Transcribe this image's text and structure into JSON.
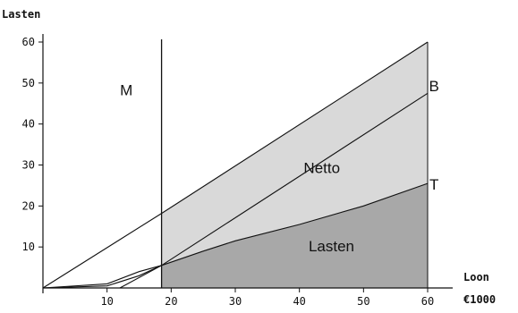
{
  "chart_data": {
    "type": "area",
    "title": "",
    "xlabel": [
      "Loon",
      "€1000"
    ],
    "ylabel": "Lasten",
    "xlim": [
      0,
      60
    ],
    "ylim": [
      0,
      60
    ],
    "xticks": [
      10,
      20,
      30,
      40,
      50,
      60
    ],
    "yticks": [
      10,
      20,
      30,
      40,
      50,
      60
    ],
    "grid": false,
    "vline_x": 18.5,
    "series": [
      {
        "name": "B",
        "x": [
          0,
          18.5,
          60
        ],
        "y": [
          0,
          18.2,
          60
        ]
      },
      {
        "name": "T",
        "x": [
          0,
          10,
          15,
          18.5,
          25,
          30,
          40,
          50,
          60
        ],
        "y": [
          0,
          1,
          4,
          5.5,
          9,
          11.5,
          15.5,
          20,
          25.5
        ]
      },
      {
        "x": [
          0,
          10,
          15,
          18.5,
          60
        ],
        "y": [
          0,
          0.5,
          3,
          5.5,
          47.5
        ]
      },
      {
        "x": [
          12,
          18.5
        ],
        "y": [
          0,
          5.5
        ]
      }
    ],
    "annotations": [
      {
        "text": "M",
        "x": 13,
        "y": 47
      },
      {
        "text": "B",
        "x": 61,
        "y": 48
      },
      {
        "text": "Netto",
        "x": 43.5,
        "y": 28
      },
      {
        "text": "T",
        "x": 61,
        "y": 24
      },
      {
        "text": "Lasten",
        "x": 45,
        "y": 9
      }
    ],
    "shading": [
      {
        "region": "between B and T, x ≥ 18.5",
        "color": "#d9d9d9"
      },
      {
        "region": "below T, x ≥ 18.5",
        "color": "#a8a8a8"
      }
    ]
  }
}
